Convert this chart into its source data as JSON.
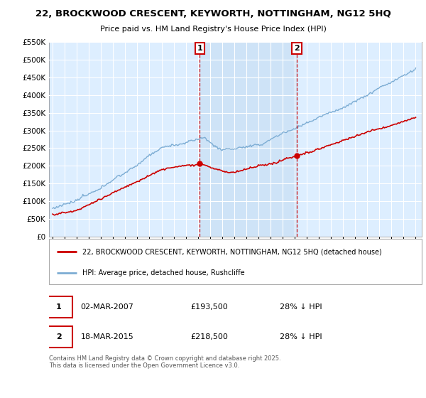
{
  "title_line1": "22, BROCKWOOD CRESCENT, KEYWORTH, NOTTINGHAM, NG12 5HQ",
  "title_line2": "Price paid vs. HM Land Registry's House Price Index (HPI)",
  "legend_red": "22, BROCKWOOD CRESCENT, KEYWORTH, NOTTINGHAM, NG12 5HQ (detached house)",
  "legend_blue": "HPI: Average price, detached house, Rushcliffe",
  "marker1_date": "02-MAR-2007",
  "marker1_price": 193500,
  "marker1_label": "28% ↓ HPI",
  "marker2_date": "18-MAR-2015",
  "marker2_price": 218500,
  "marker2_label": "28% ↓ HPI",
  "red_color": "#cc0000",
  "blue_color": "#7dadd4",
  "blue_fill": "#ddeeff",
  "marker_color": "#cc0000",
  "bg_color": "#ddeeff",
  "grid_color": "#ffffff",
  "copyright": "Contains HM Land Registry data © Crown copyright and database right 2025.\nThis data is licensed under the Open Government Licence v3.0.",
  "ylim": [
    0,
    550000
  ],
  "yticks": [
    0,
    50000,
    100000,
    150000,
    200000,
    250000,
    300000,
    350000,
    400000,
    450000,
    500000,
    550000
  ],
  "start_year": 1995,
  "end_year": 2025,
  "marker1_year": 2007.167,
  "marker2_year": 2015.208
}
